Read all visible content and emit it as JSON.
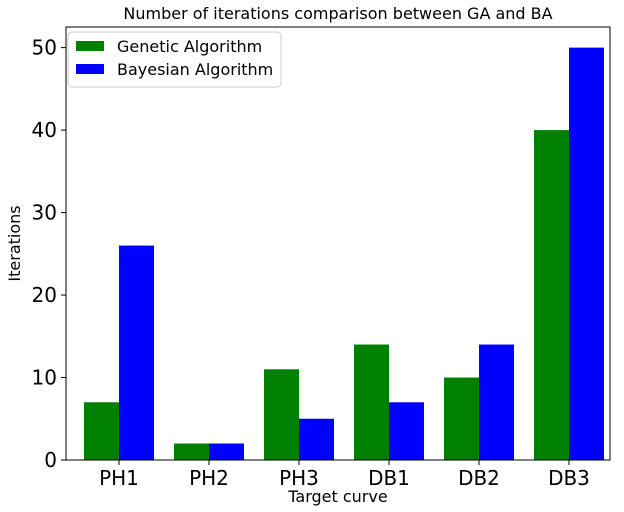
{
  "chart_data": {
    "type": "bar",
    "title": "Number of iterations comparison between GA and BA",
    "xlabel": "Target curve",
    "ylabel": "Iterations",
    "categories": [
      "PH1",
      "PH2",
      "PH3",
      "DB1",
      "DB2",
      "DB3"
    ],
    "series": [
      {
        "name": "Genetic Algorithm",
        "color": "#008000",
        "values": [
          7,
          2,
          11,
          14,
          10,
          40
        ]
      },
      {
        "name": "Bayesian Algorithm",
        "color": "#0000ff",
        "values": [
          26,
          2,
          5,
          7,
          14,
          50
        ]
      }
    ],
    "ylim": [
      0,
      52.5
    ],
    "yticks": [
      0,
      10,
      20,
      30,
      40,
      50
    ],
    "grid": false,
    "legend": "top-left"
  }
}
